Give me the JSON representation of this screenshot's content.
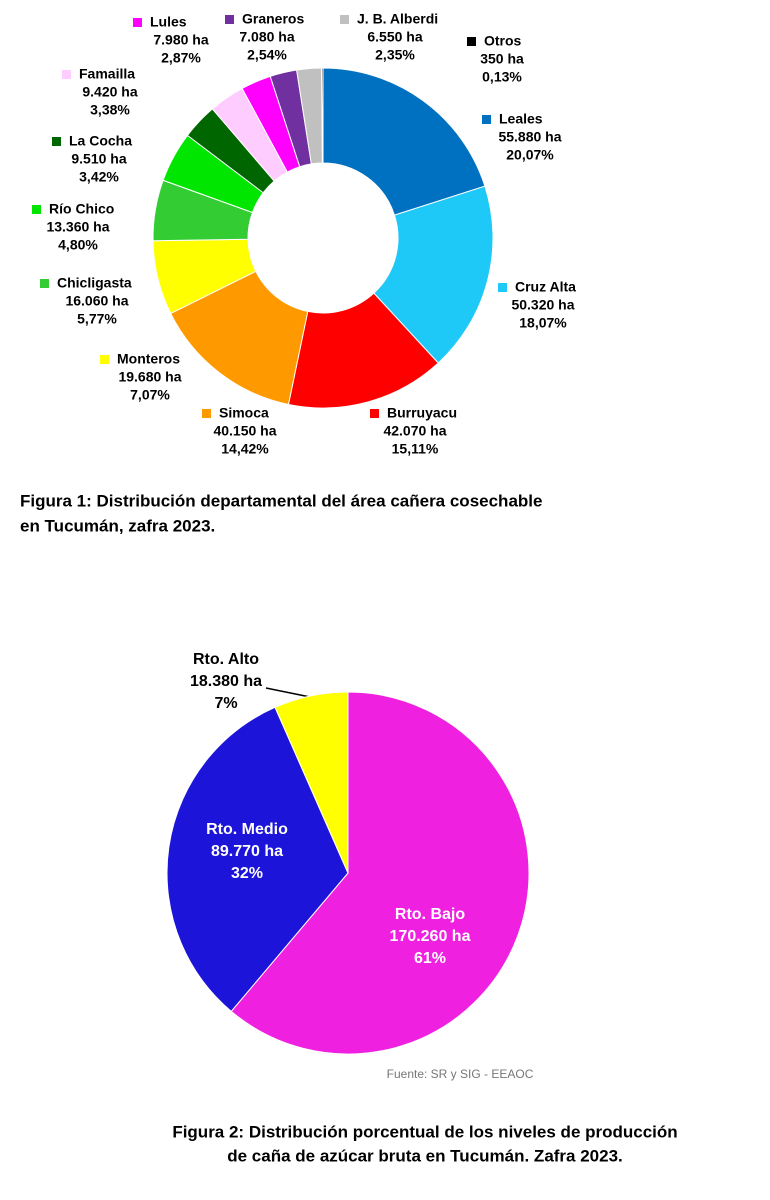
{
  "chart_data": [
    {
      "type": "donut",
      "title": [
        "Figura 1: Distribución departamental del área cañera cosechable",
        "en Tucumán,  zafra 2023."
      ],
      "categories": [
        "Leales",
        "Cruz Alta",
        "Burruyacu",
        "Simoca",
        "Monteros",
        "Chicligasta",
        "Río Chico",
        "La Cocha",
        "Famailla",
        "Lules",
        "Graneros",
        "J. B. Alberdi",
        "Otros"
      ],
      "values": [
        55880,
        50320,
        42070,
        40150,
        19680,
        16060,
        13360,
        9510,
        9420,
        7980,
        7080,
        6550,
        350
      ],
      "value_labels": [
        "55.880 ha",
        "50.320 ha",
        "42.070 ha",
        "40.150 ha",
        "19.680 ha",
        "16.060 ha",
        "13.360 ha",
        "9.510 ha",
        "9.420 ha",
        "7.980 ha",
        "7.080 ha",
        "6.550 ha",
        "350 ha"
      ],
      "percents": [
        20.07,
        18.07,
        15.11,
        14.42,
        7.07,
        5.77,
        4.8,
        3.42,
        3.38,
        2.87,
        2.54,
        2.35,
        0.13
      ],
      "percent_labels": [
        "20,07%",
        "18,07%",
        "15,11%",
        "14,42%",
        "7,07%",
        "5,77%",
        "4,80%",
        "3,42%",
        "3,38%",
        "2,87%",
        "2,54%",
        "2,35%",
        "0,13%"
      ],
      "colors": [
        "#0070c0",
        "#1ec8f7",
        "#ff0000",
        "#ff9900",
        "#ffff00",
        "#33cc33",
        "#00e600",
        "#006600",
        "#ffccff",
        "#ff00ff",
        "#7030a0",
        "#c0c0c0",
        "#000000"
      ]
    },
    {
      "type": "pie",
      "title": [
        "Figura 2: Distribución porcentual de los niveles de producción",
        "de caña de azúcar bruta en Tucumán. Zafra 2023."
      ],
      "source": "Fuente: SR y SIG - EEAOC",
      "categories": [
        "Rto. Bajo",
        "Rto. Medio",
        "Rto. Alto"
      ],
      "values": [
        170260,
        89770,
        18380
      ],
      "value_labels": [
        "170.260 ha",
        "89.770 ha",
        "18.380 ha"
      ],
      "percents": [
        61,
        32,
        7
      ],
      "percent_labels": [
        "61%",
        "32%",
        "7%"
      ],
      "colors": [
        "#f020e0",
        "#1c14d8",
        "#ffff00"
      ]
    }
  ]
}
